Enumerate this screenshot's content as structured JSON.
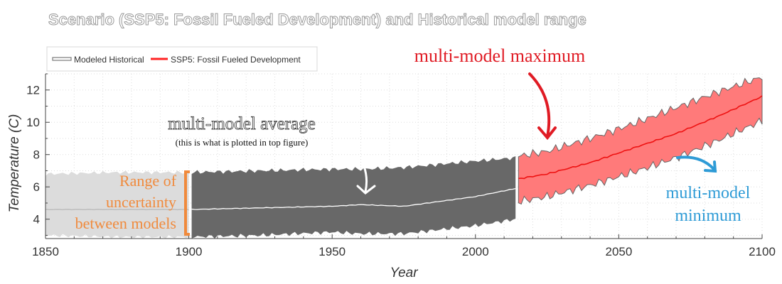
{
  "chart_data": {
    "type": "area",
    "title": "Scenario (SSP5: Fossil Fueled Development) and Historical model range",
    "xlabel": "Year",
    "ylabel": "Temperature (C)",
    "xlim": [
      1850,
      2100
    ],
    "ylim": [
      2.8,
      13
    ],
    "x_ticks": [
      1850,
      1900,
      1950,
      2000,
      2050,
      2100
    ],
    "y_ticks": [
      4,
      6,
      8,
      10,
      12
    ],
    "grid": true,
    "legend_position": "top-left",
    "legend": [
      {
        "label": "Modeled Historical",
        "color": "#7a7a7a"
      },
      {
        "label": "SSP5: Fossil Fueled Development",
        "color": "#ff2222"
      }
    ],
    "series": [
      {
        "name": "Modeled Historical",
        "kind": "range",
        "x": [
          1850,
          1875,
          1900,
          1925,
          1950,
          1960,
          1975,
          2000,
          2014
        ],
        "upper": [
          6.8,
          6.9,
          6.9,
          7.0,
          7.1,
          7.1,
          7.2,
          7.6,
          7.8
        ],
        "lower": [
          3.0,
          2.9,
          2.9,
          3.0,
          3.2,
          3.1,
          3.1,
          3.6,
          4.0
        ],
        "mean": [
          4.6,
          4.6,
          4.6,
          4.7,
          4.8,
          4.9,
          4.8,
          5.4,
          5.9
        ],
        "fill_color_early": "#dcdcdc",
        "fill_color": "#686868",
        "mean_color": "#ffffff"
      },
      {
        "name": "SSP5: Fossil Fueled Development",
        "kind": "range",
        "x": [
          2015,
          2025,
          2040,
          2055,
          2070,
          2085,
          2100
        ],
        "upper": [
          7.9,
          8.2,
          9.0,
          9.9,
          10.9,
          11.9,
          12.8
        ],
        "lower": [
          5.1,
          5.4,
          6.1,
          6.9,
          7.8,
          8.9,
          10.1
        ],
        "mean": [
          6.5,
          6.8,
          7.5,
          8.4,
          9.3,
          10.4,
          11.6
        ],
        "fill_color": "#ff7a7a",
        "edge_color": "#666666",
        "mean_color": "#ee1111"
      }
    ],
    "annotations": [
      {
        "text": "multi-model average",
        "color": "#ffffff"
      },
      {
        "text": "(this is what is plotted in top figure)",
        "color": "#111111"
      },
      {
        "text": "Range of",
        "color": "#f08a3c"
      },
      {
        "text": "uncertainty",
        "color": "#f08a3c"
      },
      {
        "text": "between models",
        "color": "#f08a3c"
      },
      {
        "text": "multi-model maximum",
        "color": "#e01b24"
      },
      {
        "text": "multi-model",
        "color": "#2e9bd6"
      },
      {
        "text": "minimum",
        "color": "#2e9bd6"
      }
    ]
  }
}
